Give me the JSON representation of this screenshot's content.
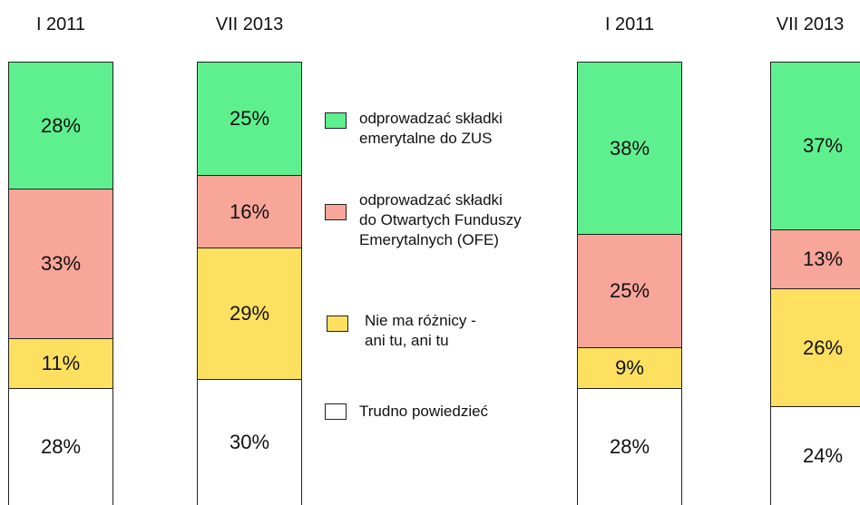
{
  "chart_data": {
    "type": "stacked_bar",
    "categories": [
      "I 2011",
      "VII 2013",
      "I 2011",
      "VII 2013"
    ],
    "series": [
      {
        "name": "odprowadzać składki\nemerytalne do ZUS",
        "color": "#5ef08f",
        "values": [
          28,
          25,
          38,
          37
        ],
        "value_labels": [
          "28%",
          "25%",
          "38%",
          "37%"
        ]
      },
      {
        "name": "odprowadzać składki\ndo Otwartych Funduszy\nEmerytalnych (OFE)",
        "color": "#f8a59a",
        "values": [
          33,
          16,
          25,
          13
        ],
        "value_labels": [
          "33%",
          "16%",
          "25%",
          "13%"
        ]
      },
      {
        "name": "Nie ma różnicy -\nani tu, ani tu",
        "color": "#fde060",
        "values": [
          11,
          29,
          9,
          26
        ],
        "value_labels": [
          "11%",
          "29%",
          "9%",
          "26%"
        ]
      },
      {
        "name": "Trudno powiedzieć",
        "color": "#ffffff",
        "values": [
          28,
          30,
          28,
          24
        ],
        "value_labels": [
          "28%",
          "30%",
          "28%",
          "24%"
        ]
      }
    ]
  }
}
